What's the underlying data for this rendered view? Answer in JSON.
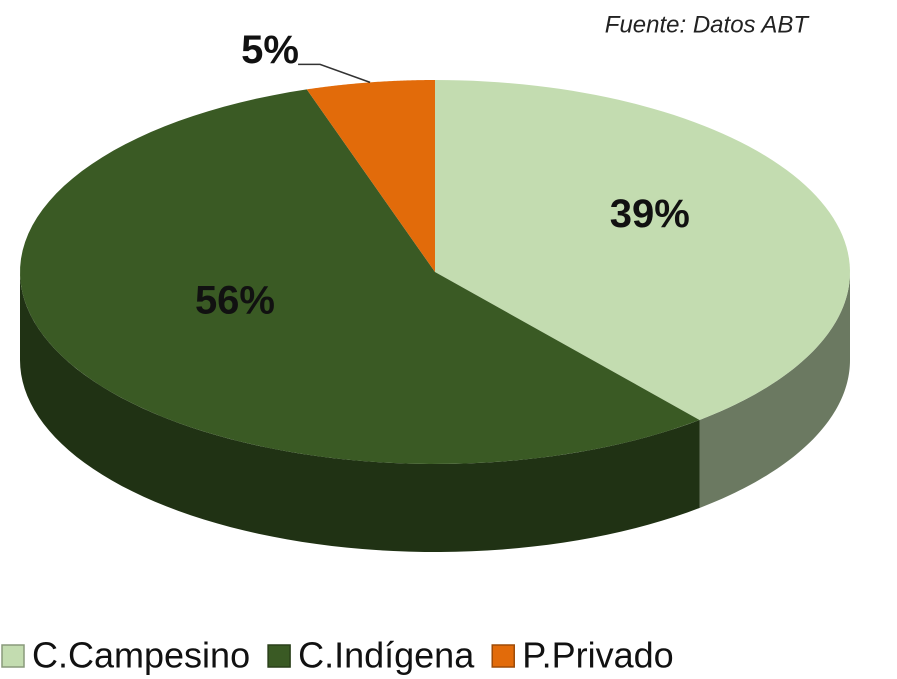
{
  "chart_data": {
    "type": "pie",
    "subtitle": "Fuente: Datos ABT",
    "categories": [
      "C.Campesino",
      "C.Indígena",
      "P.Privado"
    ],
    "values": [
      39,
      56,
      5
    ],
    "value_labels": [
      "39%",
      "56%",
      "5%"
    ],
    "colors": [
      "#c3dcb0",
      "#3a5a24",
      "#e26b0a"
    ],
    "legend": "bottom"
  }
}
